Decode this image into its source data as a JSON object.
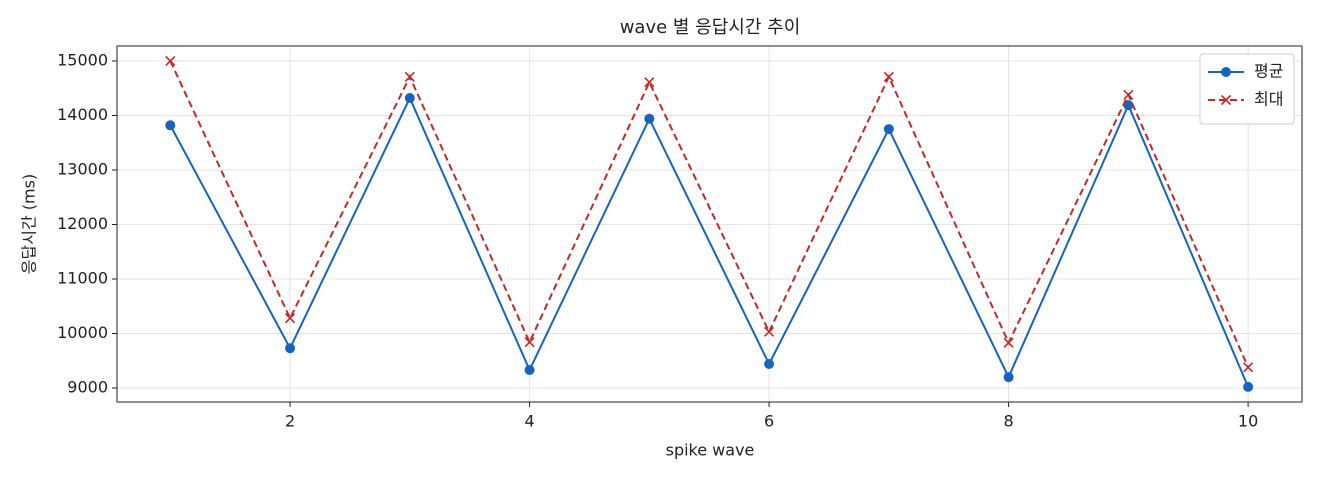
{
  "chart_data": {
    "type": "line",
    "title": "wave 별 응답시간 추이",
    "xlabel": "spike wave",
    "ylabel": "응답시간 (ms)",
    "x": [
      1,
      2,
      3,
      4,
      5,
      6,
      7,
      8,
      9,
      10
    ],
    "series": [
      {
        "name": "평균",
        "color": "#1565c0",
        "marker": "circle",
        "dash": "solid",
        "values": [
          13820,
          9730,
          14320,
          9330,
          13940,
          9440,
          13750,
          9200,
          14190,
          9020
        ]
      },
      {
        "name": "최대",
        "color": "#c62828",
        "marker": "x",
        "dash": "dashed",
        "values": [
          15000,
          10280,
          14710,
          9840,
          14610,
          10030,
          14710,
          9830,
          14380,
          9380
        ]
      }
    ],
    "xlim": [
      0.555,
      10.45
    ],
    "xticks": [
      2,
      4,
      6,
      8,
      10
    ],
    "ylim": [
      8743,
      15275
    ],
    "yticks": [
      9000,
      10000,
      11000,
      12000,
      13000,
      14000,
      15000
    ],
    "grid": true,
    "legend": "upper right"
  }
}
